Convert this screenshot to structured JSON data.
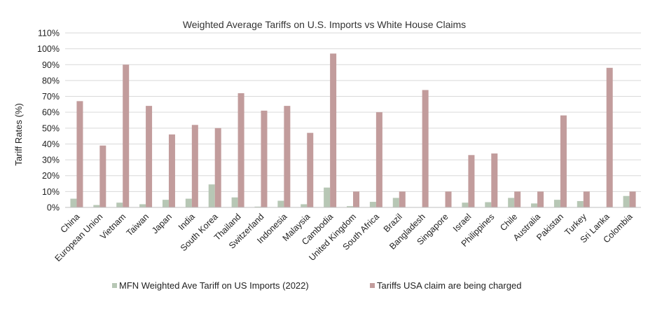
{
  "chart_data": {
    "type": "bar",
    "title": "Weighted Average Tariffs on U.S. Imports vs White House Claims",
    "xlabel": "",
    "ylabel": "Tariff Rates (%)",
    "ylim": [
      0,
      110
    ],
    "ytick_step": 10,
    "ytick_suffix": "%",
    "grid": true,
    "legend_position": "bottom",
    "categories": [
      "China",
      "European Union",
      "Vietnam",
      "Taiwan",
      "Japan",
      "India",
      "South Korea",
      "Thailand",
      "Switzerland",
      "Indonesia",
      "Malaysia",
      "Cambodia",
      "United Kingdom",
      "South Africa",
      "Brazil",
      "Bangladesh",
      "Singapore",
      "Israel",
      "Philippines",
      "Chile",
      "Australia",
      "Pakistan",
      "Turkey",
      "Sri Lanka",
      "Colombia"
    ],
    "series": [
      {
        "name": "MFN Weighted Ave Tariff on US Imports (2022)",
        "color": "#b7c7b5",
        "values": [
          5.5,
          1.5,
          3,
          2,
          4.8,
          5.5,
          14.5,
          6.3,
          0.5,
          4.2,
          2,
          12.5,
          0.8,
          3.5,
          6,
          0,
          0,
          3,
          3.3,
          6,
          2.5,
          4.8,
          4,
          0,
          7.2
        ]
      },
      {
        "name": "Tariffs USA claim are being charged",
        "color": "#c29c9c",
        "values": [
          67,
          39,
          90,
          64,
          46,
          52,
          50,
          72,
          61,
          64,
          47,
          97,
          10,
          60,
          10,
          74,
          10,
          33,
          34,
          10,
          10,
          58,
          10,
          88,
          10
        ]
      }
    ]
  }
}
